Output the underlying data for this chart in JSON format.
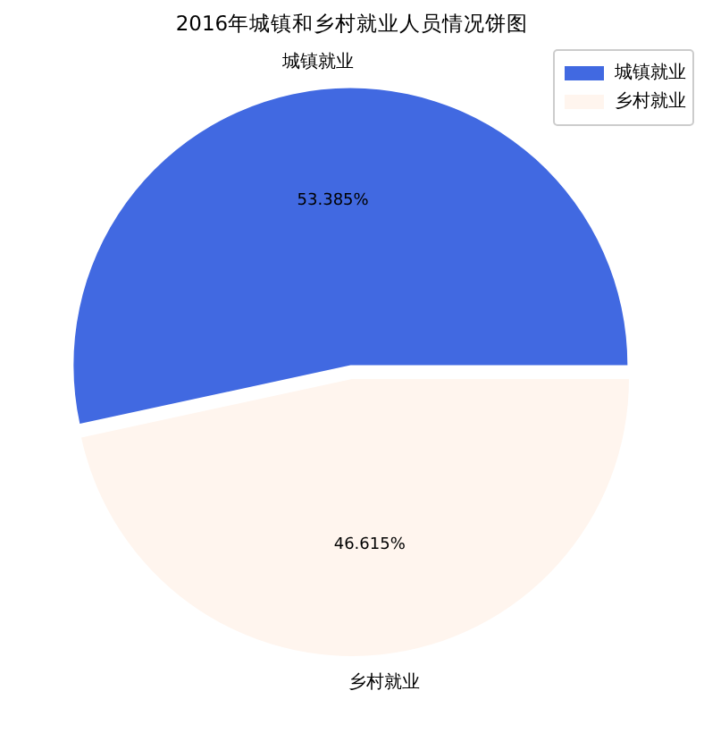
{
  "chart_data": {
    "type": "pie",
    "title": "2016年城镇和乡村就业人员情况饼图",
    "categories": [
      "城镇就业",
      "乡村就业"
    ],
    "values": [
      53.385,
      46.615
    ],
    "colors": [
      "#4169e1",
      "#fff5ee"
    ],
    "value_labels": [
      "53.385%",
      "46.615%"
    ],
    "legend": "top right"
  }
}
